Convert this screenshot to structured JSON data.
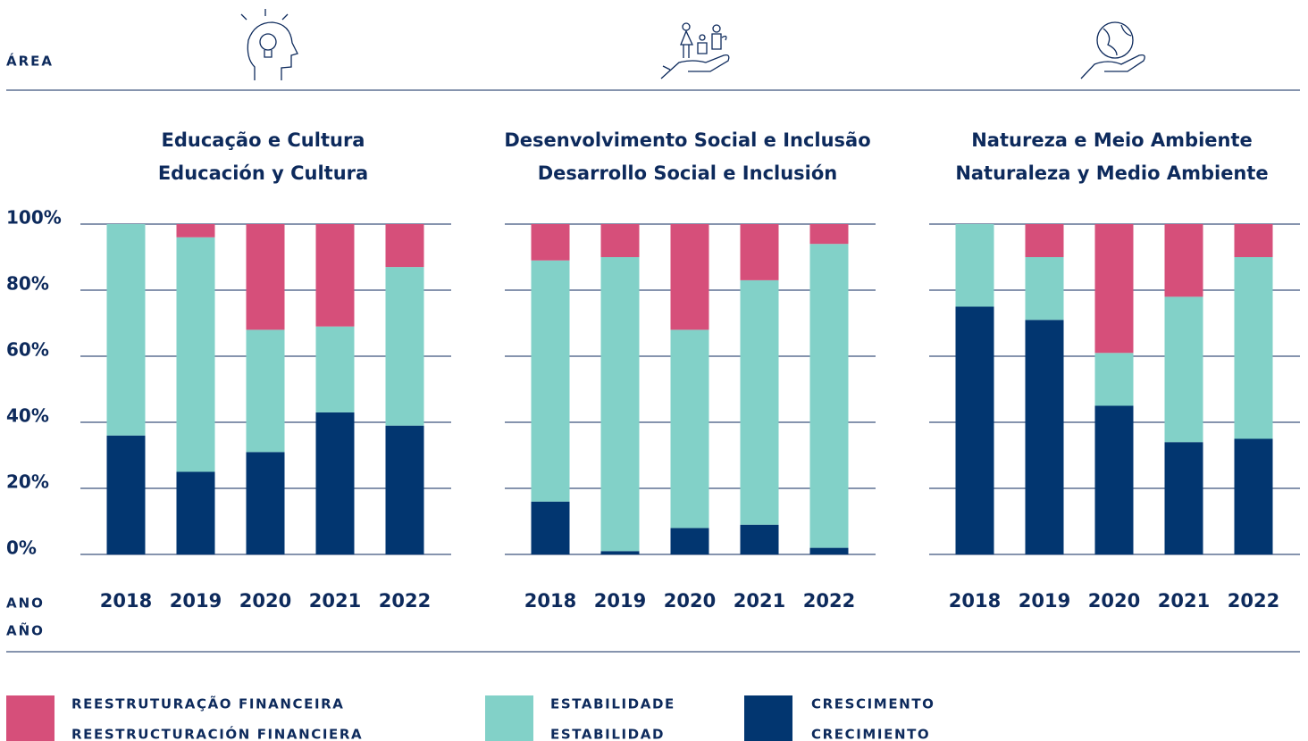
{
  "labels": {
    "area": "ÁREA",
    "year": [
      "ANO",
      "AÑO"
    ]
  },
  "chart_data": [
    {
      "type": "bar",
      "stacked": true,
      "title": [
        "Educação e Cultura",
        "Educación y Cultura"
      ],
      "categories": [
        "2018",
        "2019",
        "2020",
        "2021",
        "2022"
      ],
      "ylim": [
        0,
        100
      ],
      "yticks": [
        {
          "value": 0,
          "label": "0%"
        },
        {
          "value": 20,
          "label": "20%"
        },
        {
          "value": 40,
          "label": "40%"
        },
        {
          "value": 60,
          "label": "60%"
        },
        {
          "value": 80,
          "label": "80%"
        },
        {
          "value": 100,
          "label": "100%"
        }
      ],
      "series": [
        {
          "name": [
            "CRESCIMENTO",
            "CRECIMIENTO"
          ],
          "color": "#023670",
          "values": [
            36,
            25,
            31,
            43,
            39
          ]
        },
        {
          "name": [
            "ESTABILIDADE",
            "ESTABILIDAD"
          ],
          "color": "#82d1c8",
          "values": [
            64,
            71,
            37,
            26,
            48
          ]
        },
        {
          "name": [
            "REESTRUTURAÇÃO FINANCEIRA",
            "REESTRUCTURACIÓN  FINANCIERA"
          ],
          "color": "#d64f7a",
          "values": [
            0,
            4,
            32,
            31,
            13
          ]
        }
      ]
    },
    {
      "type": "bar",
      "stacked": true,
      "title": [
        "Desenvolvimento Social e Inclusão",
        "Desarrollo Social e Inclusión"
      ],
      "categories": [
        "2018",
        "2019",
        "2020",
        "2021",
        "2022"
      ],
      "ylim": [
        0,
        100
      ],
      "series": [
        {
          "color": "#023670",
          "values": [
            16,
            1,
            8,
            9,
            2
          ]
        },
        {
          "color": "#82d1c8",
          "values": [
            73,
            89,
            60,
            74,
            92
          ]
        },
        {
          "color": "#d64f7a",
          "values": [
            11,
            10,
            32,
            17,
            6
          ]
        }
      ]
    },
    {
      "type": "bar",
      "stacked": true,
      "title": [
        "Natureza e Meio Ambiente",
        "Naturaleza y Medio Ambiente"
      ],
      "categories": [
        "2018",
        "2019",
        "2020",
        "2021",
        "2022"
      ],
      "ylim": [
        0,
        100
      ],
      "series": [
        {
          "color": "#023670",
          "values": [
            75,
            71,
            45,
            34,
            35
          ]
        },
        {
          "color": "#82d1c8",
          "values": [
            25,
            19,
            16,
            44,
            55
          ]
        },
        {
          "color": "#d64f7a",
          "values": [
            0,
            10,
            39,
            22,
            10
          ]
        }
      ]
    }
  ]
}
